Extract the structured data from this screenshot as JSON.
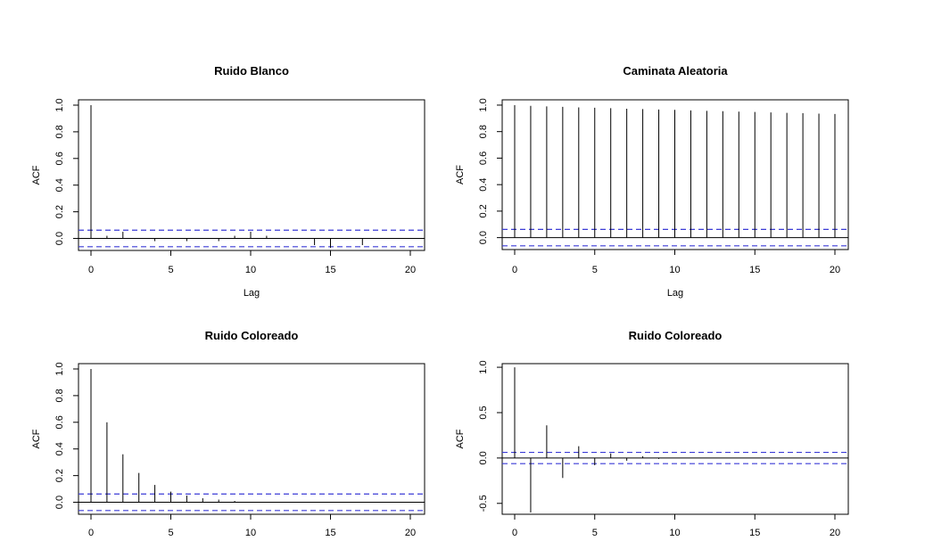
{
  "chart_data": [
    {
      "type": "bar",
      "title": "Ruido Blanco",
      "xlabel": "Lag",
      "ylabel": "ACF",
      "xlim": [
        0,
        20
      ],
      "ylim": [
        -0.09,
        1.04
      ],
      "xticks": [
        0,
        5,
        10,
        15,
        20
      ],
      "xtick_labels": [
        "0",
        "5",
        "10",
        "15",
        "20"
      ],
      "yticks": [
        0,
        0.2,
        0.4,
        0.6,
        0.8,
        1
      ],
      "ytick_labels": [
        "0.0",
        "0.2",
        "0.4",
        "0.6",
        "0.8",
        "1.0"
      ],
      "ci": 0.062,
      "x": [
        0,
        1,
        2,
        3,
        4,
        5,
        6,
        7,
        8,
        9,
        10,
        11,
        12,
        13,
        14,
        15,
        16,
        17,
        18,
        19,
        20
      ],
      "values": [
        1.0,
        0.02,
        0.05,
        0.0,
        -0.02,
        0.0,
        -0.02,
        0.0,
        -0.02,
        0.02,
        0.05,
        0.02,
        0.0,
        0.0,
        -0.05,
        -0.07,
        0.0,
        -0.05,
        0.0,
        0.0,
        0.0
      ]
    },
    {
      "type": "bar",
      "title": "Caminata Aleatoria",
      "xlabel": "Lag",
      "ylabel": "ACF",
      "xlim": [
        0,
        20
      ],
      "ylim": [
        -0.09,
        1.04
      ],
      "xticks": [
        0,
        5,
        10,
        15,
        20
      ],
      "xtick_labels": [
        "0",
        "5",
        "10",
        "15",
        "20"
      ],
      "yticks": [
        0,
        0.2,
        0.4,
        0.6,
        0.8,
        1
      ],
      "ytick_labels": [
        "0.0",
        "0.2",
        "0.4",
        "0.6",
        "0.8",
        "1.0"
      ],
      "ci": 0.062,
      "x": [
        0,
        1,
        2,
        3,
        4,
        5,
        6,
        7,
        8,
        9,
        10,
        11,
        12,
        13,
        14,
        15,
        16,
        17,
        18,
        19,
        20
      ],
      "values": [
        1.0,
        0.995,
        0.99,
        0.987,
        0.983,
        0.98,
        0.977,
        0.973,
        0.97,
        0.967,
        0.964,
        0.96,
        0.957,
        0.954,
        0.951,
        0.948,
        0.945,
        0.942,
        0.939,
        0.936,
        0.933
      ]
    },
    {
      "type": "bar",
      "title": "Ruido Coloreado",
      "xlabel": "",
      "ylabel": "ACF",
      "xlim": [
        0,
        20
      ],
      "ylim": [
        -0.09,
        1.04
      ],
      "xticks": [
        0,
        5,
        10,
        15,
        20
      ],
      "xtick_labels": [
        "0",
        "5",
        "10",
        "15",
        "20"
      ],
      "yticks": [
        0,
        0.2,
        0.4,
        0.6,
        0.8,
        1
      ],
      "ytick_labels": [
        "0.0",
        "0.2",
        "0.4",
        "0.6",
        "0.8",
        "1.0"
      ],
      "ci": 0.062,
      "x": [
        0,
        1,
        2,
        3,
        4,
        5,
        6,
        7,
        8,
        9,
        10,
        11,
        12,
        13,
        14,
        15,
        16,
        17,
        18,
        19,
        20
      ],
      "values": [
        1.0,
        0.6,
        0.36,
        0.22,
        0.13,
        0.08,
        0.05,
        0.03,
        0.02,
        0.01,
        0.0,
        0.0,
        0.0,
        0.0,
        0.0,
        0.0,
        0.0,
        0.0,
        0.0,
        0.0,
        0.0
      ]
    },
    {
      "type": "bar",
      "title": "Ruido Coloreado",
      "xlabel": "",
      "ylabel": "ACF",
      "xlim": [
        0,
        20
      ],
      "ylim": [
        -0.62,
        1.04
      ],
      "xticks": [
        0,
        5,
        10,
        15,
        20
      ],
      "xtick_labels": [
        "0",
        "5",
        "10",
        "15",
        "20"
      ],
      "yticks": [
        -0.5,
        0,
        0.5,
        1
      ],
      "ytick_labels": [
        "-0.5",
        "0.0",
        "0.5",
        "1.0"
      ],
      "ci": 0.062,
      "x": [
        0,
        1,
        2,
        3,
        4,
        5,
        6,
        7,
        8,
        9,
        10,
        11,
        12,
        13,
        14,
        15,
        16,
        17,
        18,
        19,
        20
      ],
      "values": [
        1.0,
        -0.6,
        0.36,
        -0.22,
        0.13,
        -0.08,
        0.05,
        -0.03,
        0.02,
        -0.01,
        0.0,
        0.0,
        0.0,
        0.0,
        0.0,
        0.0,
        0.0,
        0.0,
        0.0,
        0.0,
        0.0
      ]
    }
  ],
  "colors": {
    "ci_line": "#3b3bd6",
    "spike": "#000000",
    "axis": "#000000"
  }
}
